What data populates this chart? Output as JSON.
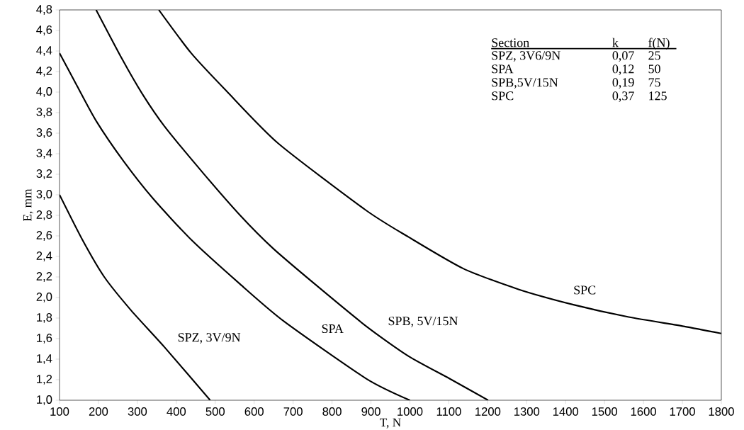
{
  "chart_data": {
    "type": "line",
    "xlabel": "T, N",
    "ylabel": "E, mm",
    "xlim": [
      100,
      1800
    ],
    "ylim": [
      1.0,
      4.8
    ],
    "xticks": [
      100,
      200,
      300,
      400,
      500,
      600,
      700,
      800,
      900,
      1000,
      1100,
      1200,
      1300,
      1400,
      1500,
      1600,
      1700,
      1800
    ],
    "yticks": [
      {
        "value": 1.0,
        "label": "1,0"
      },
      {
        "value": 1.2,
        "label": "1,2"
      },
      {
        "value": 1.4,
        "label": "1,4"
      },
      {
        "value": 1.6,
        "label": "1,6"
      },
      {
        "value": 1.8,
        "label": "1,8"
      },
      {
        "value": 2.0,
        "label": "2,0"
      },
      {
        "value": 2.2,
        "label": "2,2"
      },
      {
        "value": 2.4,
        "label": "2,4"
      },
      {
        "value": 2.6,
        "label": "2,6"
      },
      {
        "value": 2.8,
        "label": "2,8"
      },
      {
        "value": 3.0,
        "label": "3,0"
      },
      {
        "value": 3.2,
        "label": "3,2"
      },
      {
        "value": 3.4,
        "label": "3,4"
      },
      {
        "value": 3.6,
        "label": "3,6"
      },
      {
        "value": 3.8,
        "label": "3,8"
      },
      {
        "value": 4.0,
        "label": "4,0"
      },
      {
        "value": 4.2,
        "label": "4,2"
      },
      {
        "value": 4.4,
        "label": "4,4"
      },
      {
        "value": 4.6,
        "label": "4,6"
      },
      {
        "value": 4.8,
        "label": "4,8"
      }
    ],
    "line_style": "solid",
    "series": [
      {
        "name": "SPZ, 3V/9N",
        "color": "#000000",
        "x": [
          100,
          159,
          215,
          285,
          369,
          487
        ],
        "values": [
          3.0,
          2.56,
          2.2,
          1.87,
          1.52,
          1.0
        ]
      },
      {
        "name": "SPA",
        "color": "#000000",
        "x": [
          100,
          145,
          194,
          264,
          341,
          439,
          564,
          676,
          888,
          1000
        ],
        "values": [
          4.38,
          4.06,
          3.72,
          3.33,
          2.96,
          2.56,
          2.13,
          1.77,
          1.21,
          1.0
        ]
      },
      {
        "name": "SPB, 5V/15N",
        "color": "#000000",
        "x": [
          194,
          261,
          313,
          369,
          467,
          564,
          648,
          753,
          888,
          996,
          1102,
          1201
        ],
        "values": [
          4.8,
          4.32,
          3.98,
          3.67,
          3.22,
          2.8,
          2.48,
          2.14,
          1.72,
          1.43,
          1.21,
          1.0
        ]
      },
      {
        "name": "SPC",
        "color": "#000000",
        "x": [
          355,
          438,
          529,
          662,
          887,
          996,
          1138,
          1279,
          1420,
          1562,
          1703,
          1800
        ],
        "values": [
          4.8,
          4.38,
          4.01,
          3.5,
          2.85,
          2.59,
          2.28,
          2.08,
          1.93,
          1.81,
          1.72,
          1.65
        ]
      }
    ],
    "annotations": [
      "Section",
      "k",
      "f(N)",
      "SPZ, 3V6/9N",
      "0,07",
      "25",
      "SPA",
      "0,12",
      "50",
      "SPB,5V/15N",
      "0,19",
      "75",
      "SPC",
      "0,37",
      "125"
    ]
  }
}
